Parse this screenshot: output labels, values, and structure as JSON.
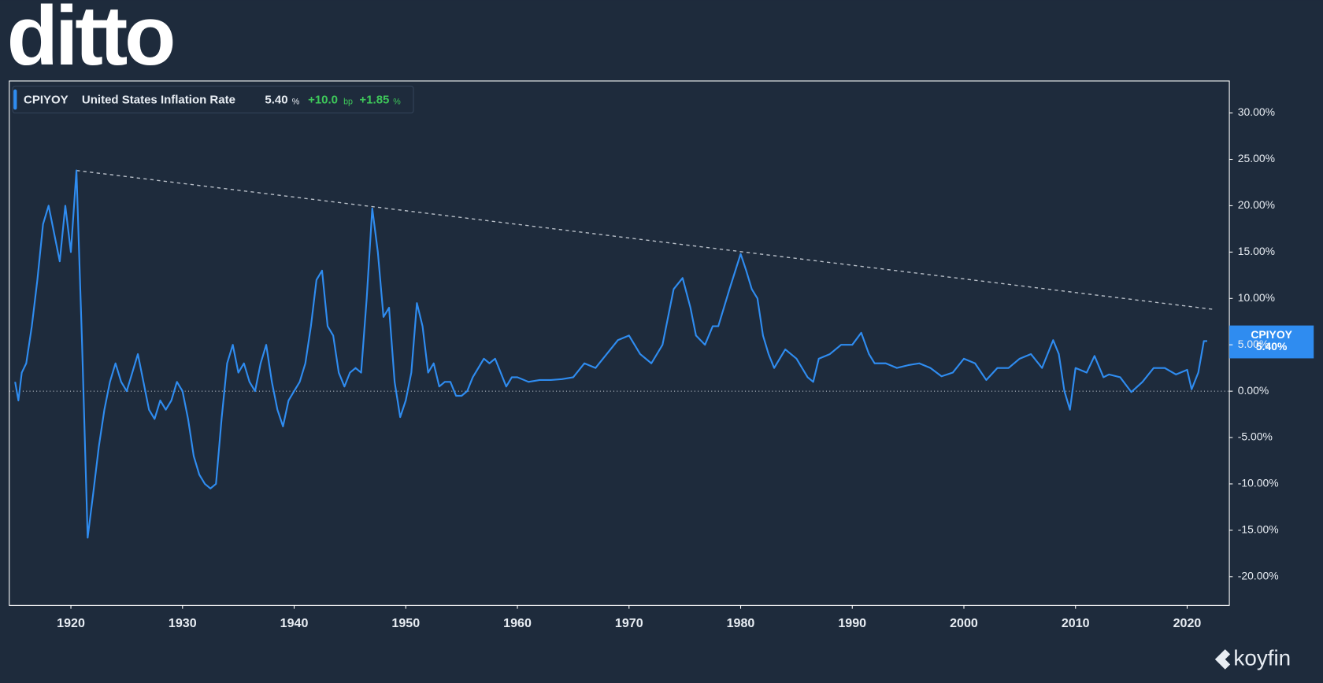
{
  "brand": {
    "logo": "ditto",
    "source": "koyfin"
  },
  "chart_data": {
    "type": "line",
    "legend": {
      "ticker": "CPIYOY",
      "name": "United States Inflation Rate",
      "last": "5.40",
      "last_unit": "%",
      "change": "+10.0",
      "change_unit": "bp",
      "change_pct": "+1.85",
      "change_pct_unit": "%"
    },
    "end_label": {
      "name": "CPIYOY",
      "value": "5.40%"
    },
    "series": [
      {
        "name": "CPIYOY",
        "color": "#2f8cf0",
        "x": [
          1915,
          1915.3,
          1915.6,
          1916,
          1916.5,
          1917,
          1917.5,
          1918,
          1918.5,
          1919,
          1919.5,
          1920,
          1920.5,
          1921,
          1921.5,
          1922,
          1922.5,
          1923,
          1923.5,
          1924,
          1924.5,
          1925,
          1925.5,
          1926,
          1926.5,
          1927,
          1927.5,
          1928,
          1928.5,
          1929,
          1929.5,
          1930,
          1930.5,
          1931,
          1931.5,
          1932,
          1932.5,
          1933,
          1933.5,
          1934,
          1934.5,
          1935,
          1935.5,
          1936,
          1936.5,
          1937,
          1937.5,
          1938,
          1938.5,
          1939,
          1939.5,
          1940,
          1940.5,
          1941,
          1941.5,
          1942,
          1942.5,
          1943,
          1943.5,
          1944,
          1944.5,
          1945,
          1945.5,
          1946,
          1946.5,
          1947,
          1947.5,
          1948,
          1948.5,
          1949,
          1949.5,
          1950,
          1950.5,
          1951,
          1951.5,
          1952,
          1952.5,
          1953,
          1953.5,
          1954,
          1954.5,
          1955,
          1955.5,
          1956,
          1956.5,
          1957,
          1957.5,
          1958,
          1958.5,
          1959,
          1959.5,
          1960,
          1961,
          1962,
          1963,
          1964,
          1965,
          1966,
          1967,
          1968,
          1969,
          1970,
          1971,
          1972,
          1973,
          1974,
          1974.8,
          1975.5,
          1976,
          1976.8,
          1977.5,
          1978,
          1979,
          1980,
          1980.5,
          1981,
          1981.5,
          1982,
          1982.5,
          1983,
          1984,
          1985,
          1986,
          1986.5,
          1987,
          1988,
          1989,
          1990,
          1990.8,
          1991.5,
          1992,
          1993,
          1994,
          1995,
          1996,
          1997,
          1998,
          1999,
          2000,
          2001,
          2002,
          2003,
          2004,
          2005,
          2006,
          2007,
          2008,
          2008.5,
          2009,
          2009.5,
          2010,
          2011,
          2011.7,
          2012.5,
          2013,
          2014,
          2015,
          2016,
          2017,
          2018,
          2019,
          2020,
          2020.4,
          2021,
          2021.5,
          2021.8
        ],
        "values": [
          1,
          -1,
          2,
          3,
          7,
          12,
          18,
          20,
          17,
          14,
          20,
          15,
          23.8,
          5,
          -15.8,
          -11,
          -6,
          -2,
          1,
          3,
          1,
          0,
          2,
          4,
          1,
          -2,
          -3,
          -1,
          -2,
          -1,
          1,
          0,
          -3,
          -7,
          -9,
          -10,
          -10.5,
          -10,
          -3,
          3,
          5,
          2,
          3,
          1,
          0,
          3,
          5,
          1,
          -2,
          -3.8,
          -1,
          0,
          1,
          3,
          7,
          12,
          13,
          7,
          6,
          2,
          0.5,
          2,
          2.5,
          2,
          10,
          19.7,
          15,
          8,
          9,
          1,
          -2.8,
          -1,
          2,
          9.5,
          7,
          2,
          3,
          0.5,
          1,
          1,
          -0.5,
          -0.5,
          0,
          1.5,
          2.5,
          3.5,
          3,
          3.5,
          2,
          0.5,
          1.5,
          1.5,
          1,
          1.2,
          1.2,
          1.3,
          1.5,
          3,
          2.5,
          4,
          5.5,
          6,
          4,
          3,
          5,
          11,
          12.2,
          9,
          6,
          5,
          7,
          7,
          11,
          14.8,
          13,
          11,
          10,
          6,
          4,
          2.5,
          4.5,
          3.5,
          1.5,
          1,
          3.5,
          4,
          5,
          5,
          6.3,
          4,
          3,
          3,
          2.5,
          2.8,
          3,
          2.5,
          1.6,
          2,
          3.5,
          3,
          1.2,
          2.5,
          2.5,
          3.5,
          4,
          2.5,
          5.5,
          4,
          0,
          -2,
          2.5,
          2,
          3.8,
          1.5,
          1.8,
          1.5,
          -0.1,
          1,
          2.5,
          2.5,
          1.8,
          2.3,
          0.2,
          2,
          5.4,
          5.4
        ]
      }
    ],
    "trendline": {
      "color": "#b8bfc8",
      "x": [
        1920.5,
        2022.5
      ],
      "values": [
        23.8,
        8.8
      ]
    },
    "xlim": [
      1914.48,
      2023.78
    ],
    "ylim": [
      -23.1,
      33.45
    ],
    "xticks": [
      1920,
      1930,
      1940,
      1950,
      1960,
      1970,
      1980,
      1990,
      2000,
      2010,
      2020
    ],
    "yticks": [
      {
        "value": 30,
        "label": "30.00%"
      },
      {
        "value": 25,
        "label": "25.00%"
      },
      {
        "value": 20,
        "label": "20.00%"
      },
      {
        "value": 15,
        "label": "15.00%"
      },
      {
        "value": 10,
        "label": "10.00%"
      },
      {
        "value": 5,
        "label": "5.00%"
      },
      {
        "value": 0,
        "label": "0.00%"
      },
      {
        "value": -5,
        "label": "-5.00%"
      },
      {
        "value": -10,
        "label": "-10.00%"
      },
      {
        "value": -15,
        "label": "-15.00%"
      },
      {
        "value": -20,
        "label": "-20.00%"
      }
    ]
  }
}
